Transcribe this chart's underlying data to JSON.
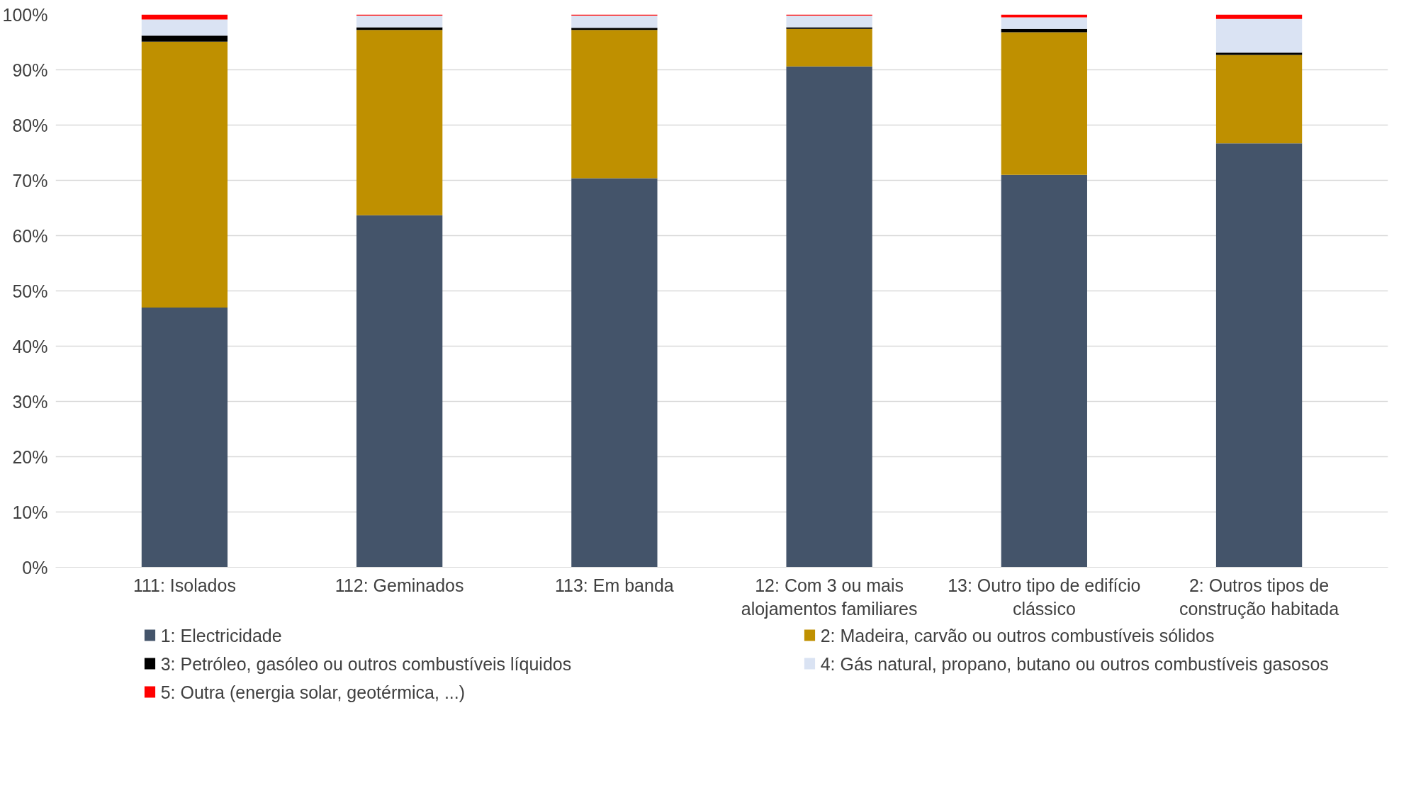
{
  "chart_data": {
    "type": "bar",
    "stacked": true,
    "categories": [
      "111: Isolados",
      "112: Geminados",
      "113: Em banda",
      "12: Com 3 ou mais alojamentos familiares",
      "13: Outro tipo de edifício clássico",
      "2: Outros tipos de construção habitada"
    ],
    "series": [
      {
        "name": "1: Electricidade",
        "color": "#44546a",
        "values": [
          47.0,
          63.7,
          70.4,
          90.6,
          71.0,
          76.7
        ]
      },
      {
        "name": "2: Madeira, carvão ou outros combustíveis sólidos",
        "color": "#bf9000",
        "values": [
          48.1,
          33.5,
          26.8,
          6.8,
          25.8,
          16.0
        ]
      },
      {
        "name": "3: Petróleo, gasóleo ou outros combustíveis líquidos",
        "color": "#000000",
        "values": [
          1.1,
          0.5,
          0.4,
          0.3,
          0.6,
          0.4
        ]
      },
      {
        "name": "4: Gás natural, propano, butano ou outros combustíveis gasosos",
        "color": "#dae3f3",
        "values": [
          2.9,
          2.1,
          2.2,
          2.1,
          2.1,
          6.1
        ]
      },
      {
        "name": "5: Outra (energia solar, geotérmica, ...)",
        "color": "#ff0000",
        "values": [
          0.9,
          0.2,
          0.2,
          0.2,
          0.5,
          0.8
        ]
      }
    ],
    "ylim": [
      0,
      100
    ],
    "yticks": [
      {
        "value": 0,
        "label": "0%"
      },
      {
        "value": 10,
        "label": "10%"
      },
      {
        "value": 20,
        "label": "20%"
      },
      {
        "value": 30,
        "label": "30%"
      },
      {
        "value": 40,
        "label": "40%"
      },
      {
        "value": 50,
        "label": "50%"
      },
      {
        "value": 60,
        "label": "60%"
      },
      {
        "value": 70,
        "label": "70%"
      },
      {
        "value": 80,
        "label": "80%"
      },
      {
        "value": 90,
        "label": "90%"
      },
      {
        "value": 100,
        "label": "100%"
      }
    ],
    "grid": "y",
    "legend": "bottom"
  }
}
